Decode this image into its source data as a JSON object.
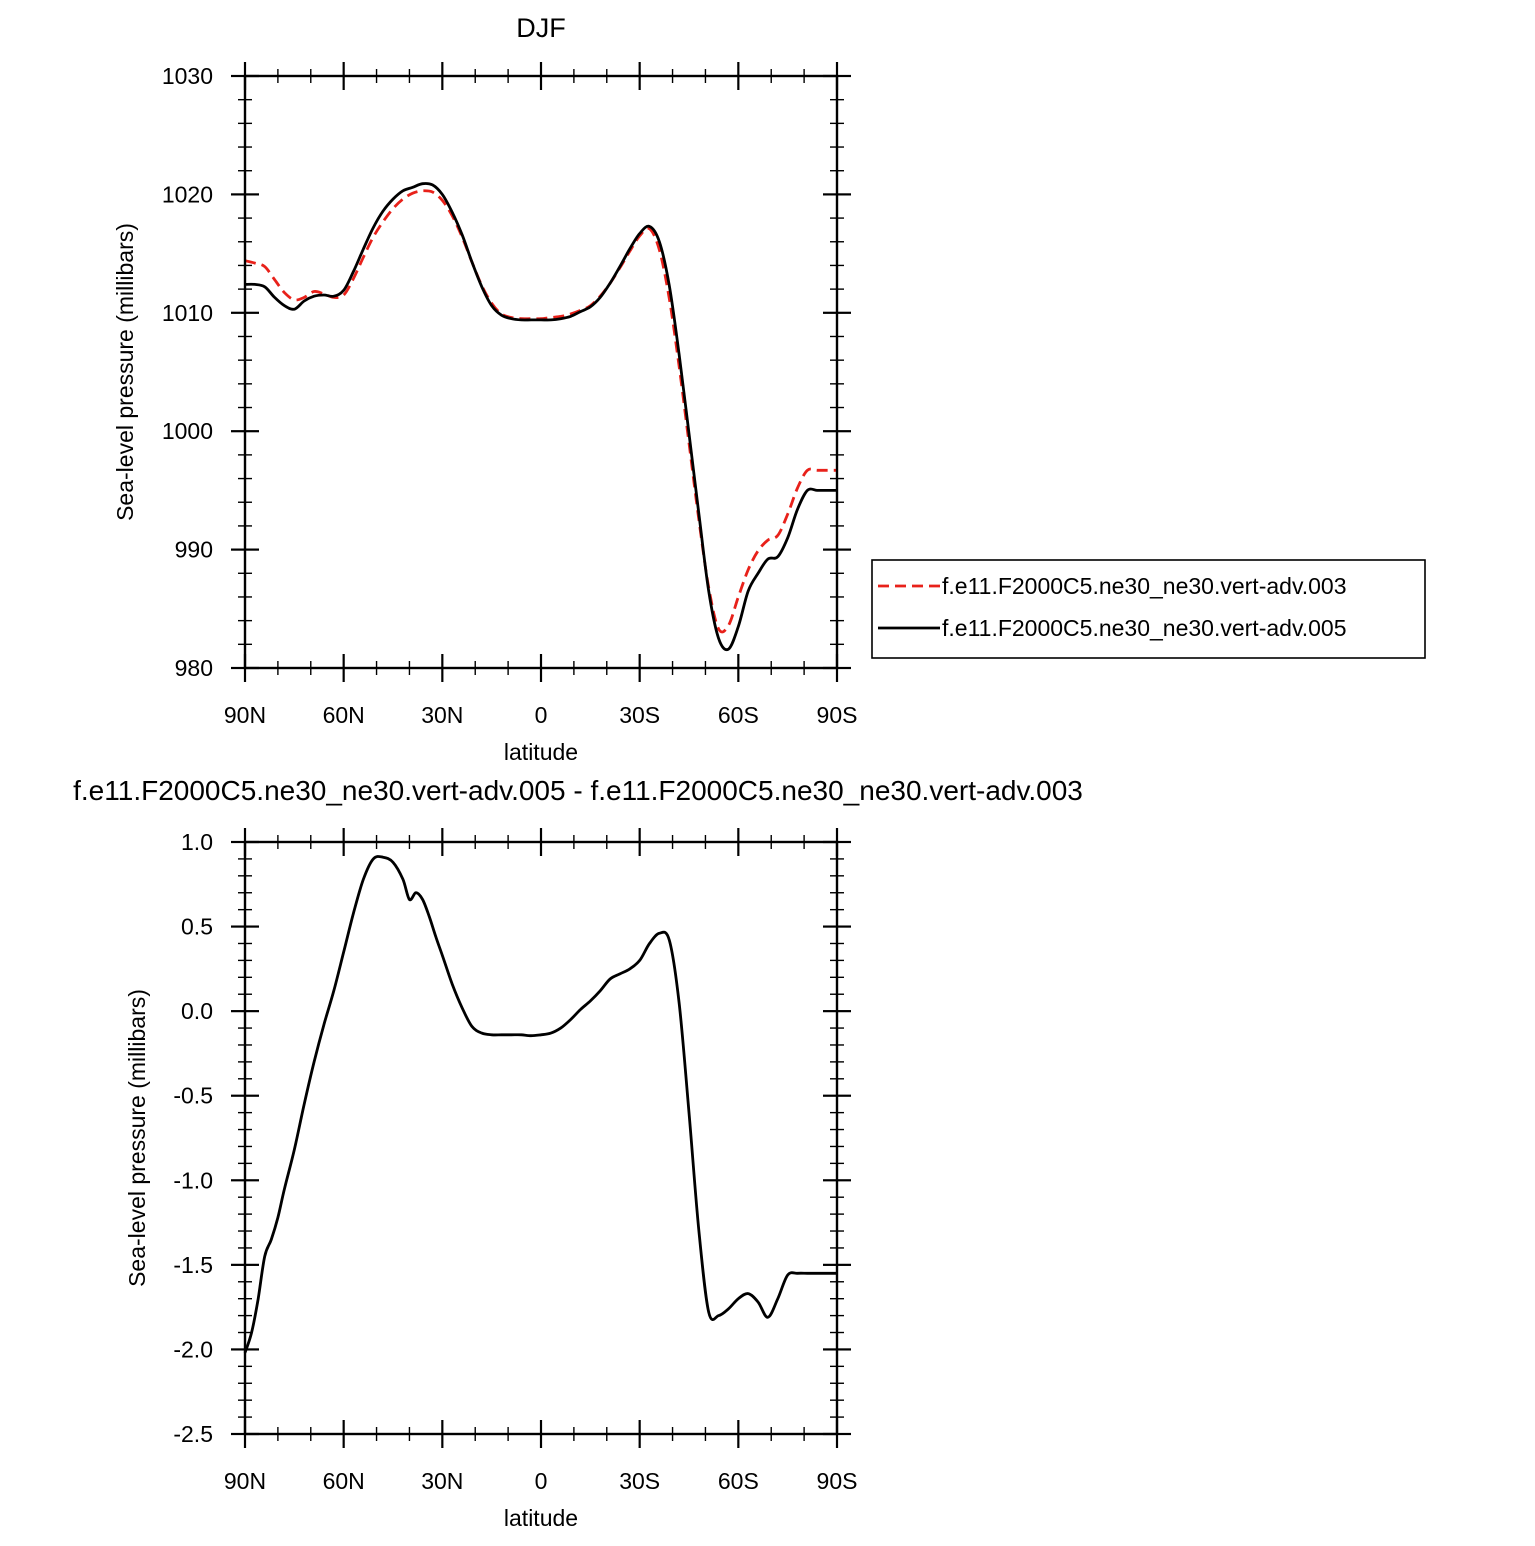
{
  "chart_data": [
    {
      "type": "line",
      "title": "DJF",
      "xlabel": "latitude",
      "ylabel": "Sea-level pressure (millibars)",
      "xlim": [
        90,
        -90
      ],
      "ylim": [
        980,
        1030
      ],
      "xticks": [
        90,
        60,
        30,
        0,
        -30,
        -60,
        -90
      ],
      "xtick_labels": [
        "90N",
        "60N",
        "30N",
        "0",
        "30S",
        "60S",
        "90S"
      ],
      "yticks": [
        980,
        990,
        1000,
        1010,
        1020,
        1030
      ],
      "ytick_labels": [
        "980",
        "990",
        "1000",
        "1010",
        "1020",
        "1030"
      ],
      "legend_position": "right, outside plot",
      "series": [
        {
          "name": "f.e11.F2000C5.ne30_ne30.vert-adv.003",
          "color": "#e8211a",
          "dash": "dashed",
          "x": [
            90,
            87,
            84,
            81,
            78,
            75,
            72,
            69,
            66,
            63,
            60,
            57,
            54,
            51,
            48,
            45,
            42,
            39,
            36,
            33,
            30,
            27,
            24,
            21,
            18,
            15,
            12,
            9,
            6,
            3,
            0,
            -3,
            -6,
            -9,
            -12,
            -15,
            -18,
            -21,
            -24,
            -27,
            -30,
            -33,
            -36,
            -39,
            -42,
            -45,
            -48,
            -51,
            -54,
            -57,
            -60,
            -63,
            -66,
            -69,
            -72,
            -75,
            -78,
            -81,
            -84,
            -87,
            -90
          ],
          "y": [
            1014.4,
            1014.2,
            1013.9,
            1012.8,
            1011.7,
            1011.1,
            1011.3,
            1011.8,
            1011.6,
            1011.3,
            1011.5,
            1012.9,
            1014.7,
            1016.4,
            1017.7,
            1018.8,
            1019.6,
            1020.1,
            1020.3,
            1020.2,
            1019.5,
            1018.2,
            1016.4,
            1014.3,
            1012.3,
            1010.8,
            1009.9,
            1009.6,
            1009.5,
            1009.5,
            1009.5,
            1009.6,
            1009.7,
            1009.9,
            1010.2,
            1010.6,
            1011.4,
            1012.5,
            1013.8,
            1015.2,
            1016.5,
            1017.1,
            1015.3,
            1011.2,
            1005.5,
            999.0,
            992.5,
            986.8,
            983.3,
            983.6,
            986.0,
            988.3,
            989.9,
            990.8,
            991.2,
            993.0,
            995.2,
            996.7,
            996.7,
            996.7,
            996.7
          ]
        },
        {
          "name": "f.e11.F2000C5.ne30_ne30.vert-adv.005",
          "color": "#000000",
          "dash": "solid",
          "x": [
            90,
            87,
            84,
            81,
            78,
            75,
            72,
            69,
            66,
            63,
            60,
            57,
            54,
            51,
            48,
            45,
            42,
            39,
            36,
            33,
            30,
            27,
            24,
            21,
            18,
            15,
            12,
            9,
            6,
            3,
            0,
            -3,
            -6,
            -9,
            -12,
            -15,
            -18,
            -21,
            -24,
            -27,
            -30,
            -33,
            -36,
            -39,
            -42,
            -45,
            -48,
            -51,
            -54,
            -57,
            -60,
            -63,
            -66,
            -69,
            -72,
            -75,
            -78,
            -81,
            -84,
            -87,
            -90
          ],
          "y": [
            1012.4,
            1012.4,
            1012.2,
            1011.3,
            1010.6,
            1010.3,
            1011.0,
            1011.4,
            1011.5,
            1011.4,
            1011.9,
            1013.5,
            1015.4,
            1017.2,
            1018.6,
            1019.6,
            1020.3,
            1020.6,
            1020.9,
            1020.8,
            1020.0,
            1018.5,
            1016.6,
            1014.3,
            1012.2,
            1010.6,
            1009.8,
            1009.5,
            1009.4,
            1009.4,
            1009.4,
            1009.4,
            1009.5,
            1009.7,
            1010.1,
            1010.5,
            1011.3,
            1012.5,
            1013.9,
            1015.4,
            1016.7,
            1017.3,
            1016.0,
            1012.3,
            1006.5,
            999.8,
            993.0,
            986.5,
            982.5,
            981.6,
            983.5,
            986.5,
            988.0,
            989.2,
            989.4,
            991.0,
            993.4,
            995.0,
            995.0,
            995.0,
            995.0
          ]
        }
      ]
    },
    {
      "type": "line",
      "title": "f.e11.F2000C5.ne30_ne30.vert-adv.005 - f.e11.F2000C5.ne30_ne30.vert-adv.003",
      "xlabel": "latitude",
      "ylabel": "Sea-level pressure (millibars)",
      "xlim": [
        90,
        -90
      ],
      "ylim": [
        -2.5,
        1.0
      ],
      "xticks": [
        90,
        60,
        30,
        0,
        -30,
        -60,
        -90
      ],
      "xtick_labels": [
        "90N",
        "60N",
        "30N",
        "0",
        "30S",
        "60S",
        "90S"
      ],
      "yticks": [
        -2.5,
        -2.0,
        -1.5,
        -1.0,
        -0.5,
        0.0,
        0.5,
        1.0
      ],
      "ytick_labels": [
        "-2.5",
        "-2.0",
        "-1.5",
        "-1.0",
        "-0.5",
        "0.0",
        "0.5",
        "1.0"
      ],
      "series": [
        {
          "color": "#000000",
          "dash": "solid",
          "x": [
            90,
            88,
            86,
            84,
            82,
            80,
            78,
            75,
            72,
            69,
            66,
            63,
            60,
            57,
            54,
            51,
            48,
            45,
            42,
            40,
            38,
            36,
            34,
            32,
            30,
            27,
            24,
            21,
            18,
            15,
            12,
            9,
            6,
            3,
            0,
            -3,
            -6,
            -9,
            -12,
            -15,
            -18,
            -21,
            -24,
            -27,
            -30,
            -33,
            -36,
            -39,
            -42,
            -45,
            -48,
            -51,
            -54,
            -57,
            -60,
            -63,
            -66,
            -69,
            -72,
            -75,
            -78,
            -81,
            -84,
            -87,
            -90
          ],
          "y": [
            -2.02,
            -1.9,
            -1.7,
            -1.45,
            -1.35,
            -1.22,
            -1.05,
            -0.82,
            -0.55,
            -0.3,
            -0.08,
            0.12,
            0.35,
            0.58,
            0.78,
            0.9,
            0.91,
            0.88,
            0.78,
            0.66,
            0.7,
            0.66,
            0.56,
            0.44,
            0.33,
            0.16,
            0.02,
            -0.09,
            -0.13,
            -0.14,
            -0.14,
            -0.14,
            -0.14,
            -0.145,
            -0.14,
            -0.13,
            -0.1,
            -0.05,
            0.01,
            0.06,
            0.12,
            0.19,
            0.22,
            0.25,
            0.3,
            0.4,
            0.46,
            0.42,
            0.05,
            -0.6,
            -1.3,
            -1.78,
            -1.8,
            -1.76,
            -1.7,
            -1.67,
            -1.72,
            -1.81,
            -1.7,
            -1.56,
            -1.55,
            -1.55,
            -1.55,
            -1.55,
            -1.55
          ]
        }
      ]
    }
  ]
}
